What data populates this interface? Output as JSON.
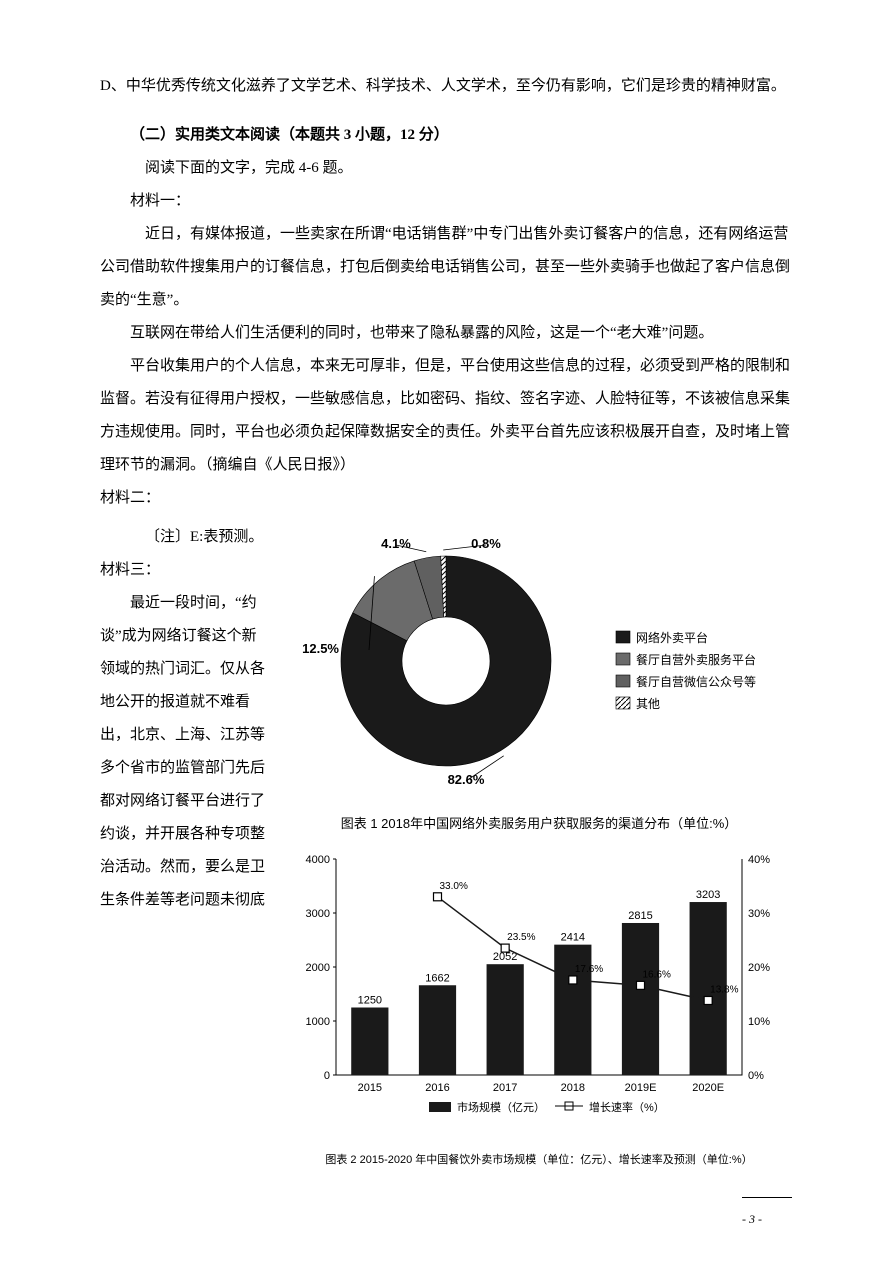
{
  "top_para": "D、中华优秀传统文化滋养了文学艺术、科学技术、人文学术，至今仍有影响，它们是珍贵的精神财富。",
  "sec2_head": "（二）实用类文本阅读（本题共 3 小题，12 分）",
  "sec2_instr": "阅读下面的文字，完成 4-6 题。",
  "mat1_label": "材料一：",
  "mat1_p1": "近日，有媒体报道，一些卖家在所谓“电话销售群”中专门出售外卖订餐客户的信息，还有网络运营公司借助软件搜集用户的订餐信息，打包后倒卖给电话销售公司，甚至一些外卖骑手也做起了客户信息倒卖的“生意”。",
  "mat1_p2": "互联网在带给人们生活便利的同时，也带来了隐私暴露的风险，这是一个“老大难”问题。",
  "mat1_p3": "平台收集用户的个人信息，本来无可厚非，但是，平台使用这些信息的过程，必须受到严格的限制和监督。若没有征得用户授权，一些敏感信息，比如密码、指纹、签名字迹、人脸特征等，不该被信息采集方违规使用。同时，平台也必须负起保障数据安全的责任。外卖平台首先应该积极展开自查，及时堵上管理环节的漏洞。（摘编自《人民日报》）",
  "mat2_label": "材料二：",
  "mat2_note": "〔注〕E:表预测。",
  "mat3_label": "材料三：",
  "mat3_body": "最近一段时间，“约谈”成为网络订餐这个新领域的热门词汇。仅从各地公开的报道就不难看出，北京、上海、江苏等多个省市的监管部门先后都对网络订餐平台进行了约谈，并开展各种专项整治活动。然而，要么是卫生条件差等老问题未彻底",
  "pie": {
    "labels": [
      "网络外卖平台",
      "餐厅自营外卖服务平台",
      "餐厅自营微信公众号等",
      "其他"
    ],
    "values": [
      82.6,
      12.5,
      4.1,
      0.8
    ],
    "colors": [
      "#1a1a1a",
      "#6b6b6b",
      "#606060",
      "#ffffff"
    ],
    "inner_radius": 44,
    "outer_radius": 105,
    "bg": "#ffffff",
    "caption": "图表 1  2018年中国网络外卖服务用户获取服务的渠道分布（单位:%）"
  },
  "bar": {
    "categories": [
      "2015",
      "2016",
      "2017",
      "2018",
      "2019E",
      "2020E"
    ],
    "bar_values": [
      1250,
      1662,
      2052,
      2414,
      2815,
      3203
    ],
    "line_values": [
      null,
      33.0,
      23.5,
      17.6,
      16.6,
      13.8
    ],
    "y1_lim": [
      0,
      4000
    ],
    "y1_step": 1000,
    "y2_lim": [
      0,
      40
    ],
    "y2_step": 10,
    "bar_color": "#1a1a1a",
    "line_color": "#1a1a1a",
    "caption": "图表 2  2015-2020 年中国餐饮外卖市场规模（单位：亿元）、增长速率及预测（单位:%）",
    "legend": [
      "市场规模（亿元）",
      "增长速率（%）"
    ]
  },
  "page_num": "- 3 -"
}
